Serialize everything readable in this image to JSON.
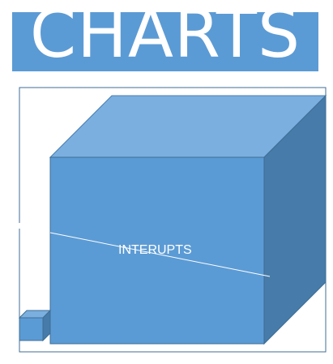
{
  "title": "CHARTS",
  "cube_label": "INTERUPTS",
  "colors": {
    "accent_blue": "#5b9bd5",
    "cube_top": "#7aafe0",
    "cube_side": "#477ba9",
    "frame_border": "#3f6e94",
    "text": "#ffffff"
  }
}
